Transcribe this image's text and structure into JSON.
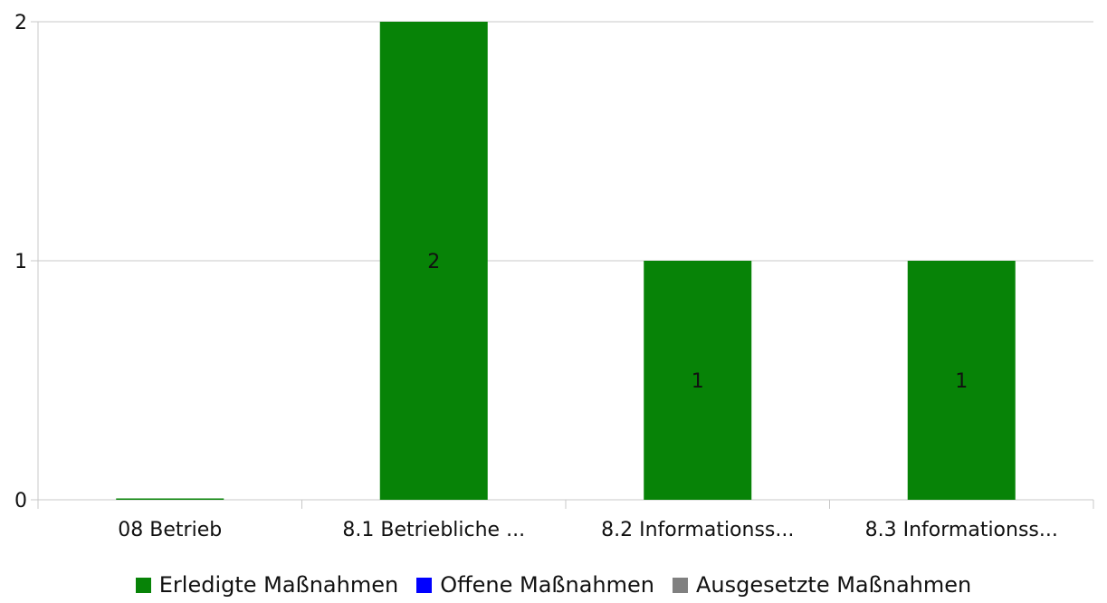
{
  "chart_data": {
    "type": "bar",
    "categories": [
      "08 Betrieb",
      "8.1 Betriebliche ...",
      "8.2 Informationss...",
      "8.3 Informationss..."
    ],
    "series": [
      {
        "name": "Erledigte Maßnahmen",
        "values": [
          0,
          2,
          1,
          1
        ],
        "color": "#078307"
      },
      {
        "name": "Offene Maßnahmen",
        "values": [
          0,
          0,
          0,
          0
        ],
        "color": "#0000ff"
      },
      {
        "name": "Ausgesetzte Maßnahmen",
        "values": [
          0,
          0,
          0,
          0
        ],
        "color": "#808080"
      }
    ],
    "data_labels": [
      "",
      "2",
      "1",
      "1"
    ],
    "y_ticks": [
      "0",
      "1",
      "2"
    ],
    "ylim": [
      0,
      2
    ],
    "grid": true,
    "legend_position": "bottom"
  }
}
